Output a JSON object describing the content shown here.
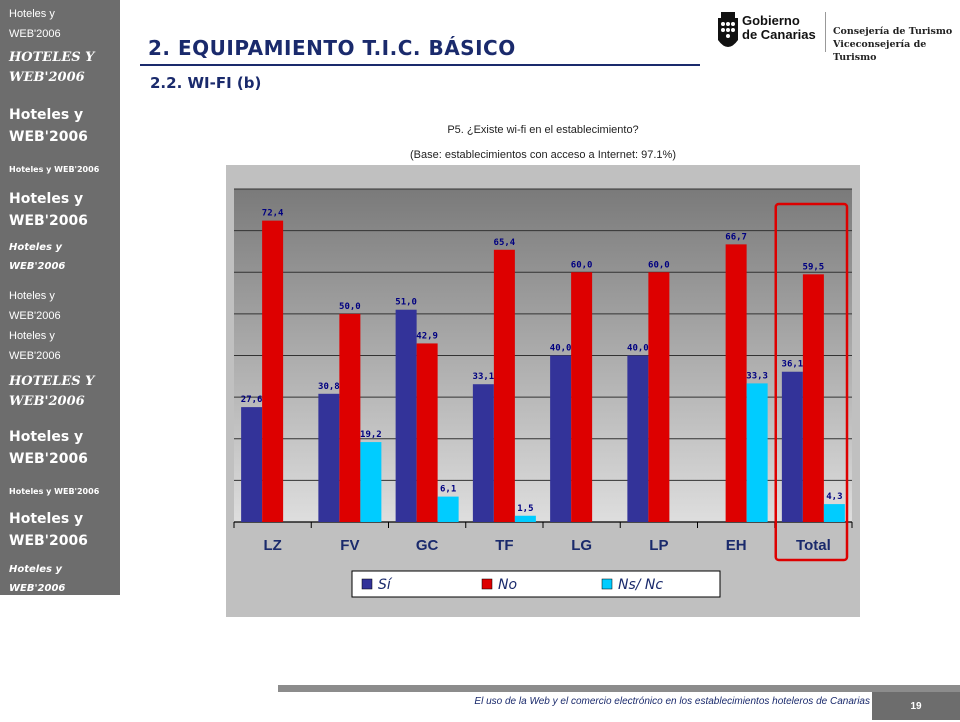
{
  "sidebar": {
    "items": [
      "Hoteles y WEB'2006",
      "Hoteles y WEB'2006",
      "Hoteles y WEB'2006",
      "Hoteles y WEB'2006",
      "Hoteles y WEB'2006",
      "Hoteles y WEB'2006",
      "Hoteles y WEB'2006",
      "Hoteles y WEB'2006",
      "Hoteles y WEB'2006",
      "Hoteles y WEB'2006",
      "Hoteles y WEB'2006",
      "Hoteles y WEB'2006",
      "Hoteles y WEB'2006"
    ]
  },
  "header": {
    "title": "2. EQUIPAMIENTO T.I.C. BÁSICO",
    "subtitle": "2.2. WI-FI (b)",
    "logo_line1": "Gobierno",
    "logo_line2": "de Canarias",
    "dept_line1": "Consejería de Turismo",
    "dept_line2": "Viceconsejería de Turismo"
  },
  "question": "P5. ¿Existe wi-fi en el establecimiento?",
  "base": "(Base: establecimientos con acceso a Internet: 97.1%)",
  "footer": {
    "text": "El uso de la Web y el comercio electrónico en los establecimientos hoteleros de Canarias",
    "page": "19"
  },
  "chart_data": {
    "type": "bar",
    "categories": [
      "LZ",
      "FV",
      "GC",
      "TF",
      "LG",
      "LP",
      "EH",
      "Total"
    ],
    "series": [
      {
        "name": "Sí",
        "values": [
          27.6,
          30.8,
          51.0,
          33.1,
          40.0,
          40.0,
          null,
          36.1
        ],
        "labels": [
          "27,6",
          "30,8",
          "51,0",
          "33,1",
          "40,0",
          "40,0",
          "",
          "36,1"
        ],
        "color": "#333399"
      },
      {
        "name": "No",
        "values": [
          72.4,
          50.0,
          42.9,
          65.4,
          60.0,
          60.0,
          66.7,
          59.5
        ],
        "labels": [
          "72,4",
          "50,0",
          "42,9",
          "65,4",
          "60,0",
          "60,0",
          "66,7",
          "59,5"
        ],
        "color": "#dd0000"
      },
      {
        "name": "Ns/ Nc",
        "values": [
          null,
          19.2,
          6.1,
          1.5,
          null,
          null,
          33.3,
          4.3
        ],
        "labels": [
          "",
          "19,2",
          "6,1",
          "1,5",
          "",
          "",
          "33,3",
          "4,3"
        ],
        "color": "#00ccff"
      }
    ],
    "ylim": [
      0,
      80
    ],
    "grid": true,
    "legend_position": "bottom",
    "highlight_category": "Total",
    "colors": {
      "background": "#c0c0c0",
      "highlight": "#dd0000",
      "label": "#000080"
    }
  }
}
